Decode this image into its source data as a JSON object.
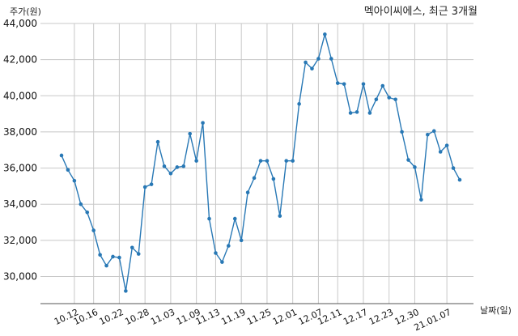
{
  "chart_data": {
    "type": "line",
    "title": "멕아이씨에스, 최근 3개월",
    "ylabel": "주가(원)",
    "xlabel": "날짜(일)",
    "ylim": [
      28500,
      44000
    ],
    "yticks": [
      30000,
      32000,
      34000,
      36000,
      38000,
      40000,
      42000,
      44000
    ],
    "ytick_labels": [
      "30,000",
      "32,000",
      "34,000",
      "36,000",
      "38,000",
      "40,000",
      "42,000",
      "44,000"
    ],
    "xtick_labels": [
      "10.12",
      "10.16",
      "10.22",
      "10.28",
      "11.03",
      "11.09",
      "11.13",
      "11.19",
      "11.25",
      "12.01",
      "12.07",
      "12.11",
      "12.17",
      "12.23",
      "12.30",
      "21.01.07"
    ],
    "xtick_index": [
      2,
      5,
      9,
      13,
      17,
      21,
      24,
      28,
      32,
      36,
      40,
      43,
      47,
      51,
      55,
      60
    ],
    "grid": true,
    "series": [
      {
        "color": "#2878b5",
        "values": [
          36700,
          35900,
          35300,
          34000,
          33550,
          32550,
          31200,
          30600,
          31100,
          31050,
          29200,
          31600,
          31250,
          34950,
          35100,
          37450,
          36100,
          35700,
          36050,
          36100,
          37900,
          36400,
          38500,
          33200,
          31300,
          30800,
          31700,
          33200,
          32000,
          34650,
          35450,
          36400,
          36400,
          35400,
          33350,
          36400,
          36400,
          39550,
          41850,
          41500,
          42050,
          43400,
          42050,
          40700,
          40650,
          39050,
          39100,
          40650,
          39050,
          39800,
          40550,
          39900,
          39800,
          38000,
          36450,
          36050,
          34250,
          37850,
          38050,
          36900,
          37250,
          36000,
          35350
        ]
      }
    ]
  }
}
